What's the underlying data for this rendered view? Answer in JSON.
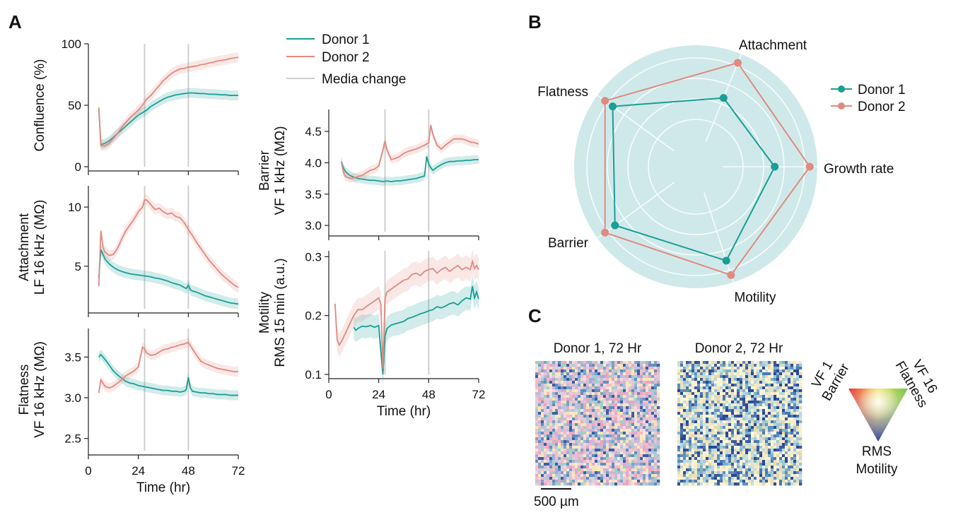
{
  "panels": {
    "a": "A",
    "b": "B",
    "c": "C"
  },
  "colors": {
    "donor1": "#1a9e96",
    "donor2": "#e08a80",
    "media": "#cfcfcf",
    "radar_bg": "#cfe9ea"
  },
  "legend_a": {
    "donor1": "Donor 1",
    "donor2": "Donor 2",
    "media": "Media change"
  },
  "legend_b": {
    "donor1": "Donor 1",
    "donor2": "Donor 2"
  },
  "panel_c": {
    "title1": "Donor 1, 72 Hr",
    "title2": "Donor 2, 72 Hr",
    "scale": "500 µm",
    "corner_left": [
      "VF 1",
      "Barrier"
    ],
    "corner_right": [
      "VF 16",
      "Flatness"
    ],
    "corner_bottom": [
      "RMS",
      "Motility"
    ]
  },
  "chart_data": [
    {
      "type": "line",
      "panel": "A",
      "ylabel": [
        "Confluence (%)"
      ],
      "xlim": [
        0,
        72
      ],
      "ylim": [
        0,
        100
      ],
      "yticks": [
        0,
        50,
        100
      ],
      "xticks": [
        0,
        24,
        48,
        72
      ],
      "media_change_x": [
        27,
        48
      ],
      "series": [
        {
          "name": "Donor 1",
          "x": [
            5,
            6,
            8,
            10,
            12,
            14,
            16,
            18,
            20,
            22,
            24,
            26,
            28,
            30,
            32,
            34,
            36,
            38,
            40,
            42,
            44,
            46,
            48,
            50,
            52,
            54,
            56,
            58,
            60,
            62,
            64,
            66,
            68,
            70,
            72
          ],
          "y": [
            48,
            18,
            19,
            21,
            24,
            27,
            30,
            33,
            36,
            39,
            42,
            44,
            46,
            49,
            51,
            53,
            55,
            56.5,
            57.5,
            58.5,
            59,
            59.5,
            60,
            60,
            59.8,
            59.5,
            59.5,
            59,
            59,
            58.8,
            58.5,
            58.5,
            58,
            58,
            58
          ]
        },
        {
          "name": "Donor 2",
          "x": [
            5,
            6,
            8,
            10,
            12,
            14,
            16,
            18,
            20,
            22,
            24,
            26,
            28,
            30,
            32,
            34,
            36,
            38,
            40,
            42,
            44,
            46,
            48,
            50,
            52,
            54,
            56,
            58,
            60,
            62,
            64,
            66,
            68,
            70,
            72
          ],
          "y": [
            48,
            17,
            17,
            19,
            23,
            27,
            32,
            36,
            40,
            43,
            46,
            50,
            55,
            58,
            62,
            66,
            70,
            73,
            76,
            78,
            79.5,
            80,
            81,
            81.5,
            82,
            83,
            83.5,
            84.5,
            85,
            86,
            86.5,
            87,
            88,
            88.5,
            89
          ]
        }
      ]
    },
    {
      "type": "line",
      "panel": "A",
      "ylabel": [
        "Attachment",
        "LF 16 kHz (MΩ)"
      ],
      "xlim": [
        0,
        72
      ],
      "ylim": [
        1.4,
        11.8
      ],
      "yticks": [
        5,
        10
      ],
      "xticks": [
        0,
        24,
        48,
        72
      ],
      "media_change_x": [
        27,
        48
      ],
      "series": [
        {
          "name": "Donor 1",
          "x": [
            5,
            6,
            7,
            8,
            10,
            12,
            14,
            16,
            18,
            20,
            22,
            24,
            26,
            28,
            30,
            32,
            34,
            36,
            38,
            40,
            42,
            44,
            46,
            47,
            48,
            49,
            50,
            52,
            54,
            56,
            58,
            60,
            62,
            64,
            66,
            68,
            70,
            72
          ],
          "y": [
            4,
            6.4,
            6.0,
            5.6,
            5.2,
            4.9,
            4.7,
            4.55,
            4.45,
            4.35,
            4.3,
            4.25,
            4.2,
            4.15,
            4.1,
            4.0,
            3.95,
            3.85,
            3.75,
            3.6,
            3.5,
            3.4,
            3.2,
            3.1,
            3.4,
            3.0,
            2.9,
            2.8,
            2.65,
            2.5,
            2.4,
            2.3,
            2.2,
            2.1,
            2.0,
            1.9,
            1.85,
            1.8
          ]
        },
        {
          "name": "Donor 2",
          "x": [
            5,
            6,
            7,
            8,
            10,
            12,
            14,
            16,
            18,
            20,
            22,
            24,
            26,
            27,
            28,
            30,
            32,
            34,
            36,
            38,
            40,
            42,
            44,
            46,
            48,
            50,
            52,
            54,
            56,
            58,
            60,
            62,
            64,
            66,
            68,
            70,
            72
          ],
          "y": [
            3.3,
            8.0,
            6.6,
            6.2,
            5.9,
            6.0,
            6.5,
            7.3,
            8.0,
            8.5,
            9.0,
            9.6,
            10.0,
            10.6,
            10.6,
            10.2,
            9.8,
            9.9,
            9.6,
            9.4,
            9.5,
            9.2,
            9.1,
            8.7,
            8.1,
            7.6,
            7.0,
            6.5,
            6.0,
            5.5,
            5.1,
            4.7,
            4.3,
            4.0,
            3.7,
            3.4,
            3.2
          ]
        }
      ]
    },
    {
      "type": "line",
      "panel": "A",
      "ylabel": [
        "Flatness",
        "VF 16 kHz (MΩ)"
      ],
      "xlim": [
        0,
        72
      ],
      "ylim": [
        2.35,
        3.85
      ],
      "yticks": [
        2.5,
        3.0,
        3.5
      ],
      "xticks": [
        0,
        24,
        48,
        72
      ],
      "xlabel": "Time (hr)",
      "media_change_x": [
        27,
        48
      ],
      "series": [
        {
          "name": "Donor 1",
          "x": [
            5,
            6,
            8,
            10,
            12,
            14,
            16,
            18,
            20,
            22,
            24,
            26,
            28,
            30,
            32,
            34,
            36,
            38,
            40,
            42,
            44,
            46,
            47,
            48,
            49,
            50,
            52,
            54,
            56,
            58,
            60,
            62,
            64,
            66,
            68,
            70,
            72
          ],
          "y": [
            3.5,
            3.53,
            3.47,
            3.4,
            3.33,
            3.28,
            3.24,
            3.2,
            3.18,
            3.17,
            3.15,
            3.14,
            3.13,
            3.12,
            3.11,
            3.1,
            3.09,
            3.09,
            3.08,
            3.08,
            3.07,
            3.08,
            3.1,
            3.25,
            3.12,
            3.08,
            3.07,
            3.06,
            3.06,
            3.05,
            3.05,
            3.04,
            3.04,
            3.04,
            3.03,
            3.03,
            3.03
          ]
        },
        {
          "name": "Donor 2",
          "x": [
            5,
            6,
            7,
            8,
            10,
            12,
            14,
            16,
            18,
            20,
            22,
            24,
            26,
            27,
            28,
            30,
            32,
            34,
            36,
            38,
            40,
            42,
            44,
            46,
            48,
            50,
            52,
            54,
            56,
            58,
            60,
            62,
            64,
            66,
            68,
            70,
            72
          ],
          "y": [
            3.06,
            3.22,
            3.18,
            3.14,
            3.12,
            3.14,
            3.18,
            3.22,
            3.27,
            3.3,
            3.33,
            3.38,
            3.62,
            3.6,
            3.55,
            3.52,
            3.53,
            3.56,
            3.59,
            3.6,
            3.62,
            3.63,
            3.65,
            3.66,
            3.68,
            3.6,
            3.52,
            3.45,
            3.42,
            3.4,
            3.38,
            3.36,
            3.35,
            3.34,
            3.33,
            3.32,
            3.32
          ]
        }
      ]
    },
    {
      "type": "line",
      "panel": "A",
      "ylabel": [
        "Barrier",
        "VF 1 kHz (MΩ)"
      ],
      "xlim": [
        0,
        72
      ],
      "ylim": [
        2.9,
        4.85
      ],
      "yticks": [
        3.0,
        3.5,
        4.0,
        4.5
      ],
      "xticks": [
        0,
        24,
        48,
        72
      ],
      "media_change_x": [
        27,
        48
      ],
      "series": [
        {
          "name": "Donor 1",
          "x": [
            6,
            7,
            8,
            10,
            12,
            14,
            16,
            18,
            20,
            22,
            24,
            26,
            28,
            30,
            32,
            34,
            36,
            38,
            40,
            42,
            44,
            46,
            47,
            48,
            49,
            50,
            52,
            54,
            56,
            58,
            60,
            62,
            64,
            66,
            68,
            70,
            72
          ],
          "y": [
            4.02,
            3.92,
            3.86,
            3.8,
            3.77,
            3.75,
            3.74,
            3.73,
            3.72,
            3.72,
            3.71,
            3.7,
            3.71,
            3.7,
            3.71,
            3.71,
            3.72,
            3.73,
            3.74,
            3.75,
            3.77,
            3.79,
            4.1,
            3.98,
            3.92,
            3.88,
            3.93,
            3.97,
            4.0,
            4.02,
            4.02,
            4.03,
            4.03,
            4.04,
            4.04,
            4.05,
            4.05
          ]
        },
        {
          "name": "Donor 2",
          "x": [
            6,
            7,
            8,
            10,
            12,
            14,
            16,
            18,
            20,
            22,
            24,
            26,
            27,
            28,
            30,
            32,
            34,
            36,
            38,
            40,
            42,
            44,
            46,
            48,
            49,
            50,
            52,
            54,
            56,
            58,
            60,
            62,
            64,
            66,
            68,
            70,
            72
          ],
          "y": [
            4.02,
            3.85,
            3.78,
            3.75,
            3.76,
            3.78,
            3.8,
            3.84,
            3.88,
            3.9,
            3.95,
            4.2,
            4.35,
            4.2,
            4.05,
            4.07,
            4.1,
            4.15,
            4.18,
            4.2,
            4.22,
            4.25,
            4.28,
            4.32,
            4.6,
            4.45,
            4.28,
            4.22,
            4.28,
            4.33,
            4.38,
            4.38,
            4.38,
            4.36,
            4.33,
            4.32,
            4.3
          ]
        }
      ]
    },
    {
      "type": "line",
      "panel": "A",
      "ylabel": [
        "Motility",
        "RMS 15 min (a.u.)"
      ],
      "xlim": [
        0,
        72
      ],
      "ylim": [
        0.1,
        0.31
      ],
      "yticks": [
        0.1,
        0.2,
        0.3
      ],
      "xticks": [
        0,
        24,
        48,
        72
      ],
      "xlabel": "Time (hr)",
      "media_change_x": [
        27,
        48
      ],
      "series": [
        {
          "name": "Donor 1",
          "x": [
            12,
            13,
            14,
            16,
            18,
            20,
            22,
            24,
            25,
            26,
            27,
            28,
            30,
            32,
            34,
            36,
            38,
            40,
            42,
            44,
            46,
            48,
            50,
            52,
            54,
            56,
            58,
            60,
            62,
            64,
            66,
            68,
            69,
            70,
            71,
            72
          ],
          "y": [
            0.18,
            0.175,
            0.178,
            0.182,
            0.181,
            0.183,
            0.18,
            0.183,
            0.14,
            0.1,
            0.165,
            0.178,
            0.184,
            0.186,
            0.188,
            0.19,
            0.195,
            0.197,
            0.2,
            0.203,
            0.205,
            0.208,
            0.21,
            0.215,
            0.213,
            0.216,
            0.22,
            0.222,
            0.218,
            0.225,
            0.23,
            0.228,
            0.25,
            0.23,
            0.24,
            0.228
          ]
        },
        {
          "name": "Donor 2",
          "x": [
            3,
            4,
            5,
            6,
            8,
            10,
            12,
            14,
            16,
            18,
            20,
            22,
            24,
            25,
            26,
            27,
            28,
            30,
            32,
            34,
            36,
            38,
            40,
            42,
            44,
            46,
            48,
            50,
            52,
            54,
            56,
            58,
            60,
            62,
            64,
            66,
            68,
            69,
            70,
            71,
            72
          ],
          "y": [
            0.22,
            0.16,
            0.15,
            0.155,
            0.17,
            0.185,
            0.2,
            0.21,
            0.21,
            0.215,
            0.22,
            0.225,
            0.23,
            0.22,
            0.11,
            0.23,
            0.24,
            0.245,
            0.25,
            0.255,
            0.26,
            0.262,
            0.27,
            0.272,
            0.268,
            0.275,
            0.278,
            0.28,
            0.272,
            0.278,
            0.282,
            0.275,
            0.28,
            0.285,
            0.278,
            0.282,
            0.278,
            0.292,
            0.28,
            0.285,
            0.278
          ]
        }
      ]
    },
    {
      "type": "radar",
      "panel": "B",
      "axes": [
        "Attachment",
        "Growth rate",
        "Motility",
        "Barrier",
        "Flatness"
      ],
      "rmax": 1.0,
      "series": [
        {
          "name": "Donor 1",
          "values": [
            0.5,
            0.55,
            0.76,
            0.77,
            0.8
          ]
        },
        {
          "name": "Donor 2",
          "values": [
            0.9,
            0.92,
            0.92,
            0.9,
            0.9
          ]
        }
      ]
    },
    {
      "type": "heatmap",
      "panel": "C",
      "titles": [
        "Donor 1, 72 Hr",
        "Donor 2, 72 Hr"
      ],
      "colorkey": {
        "vertices": [
          "VF 1 Barrier",
          "VF 16 Flatness",
          "RMS Motility"
        ]
      }
    }
  ]
}
